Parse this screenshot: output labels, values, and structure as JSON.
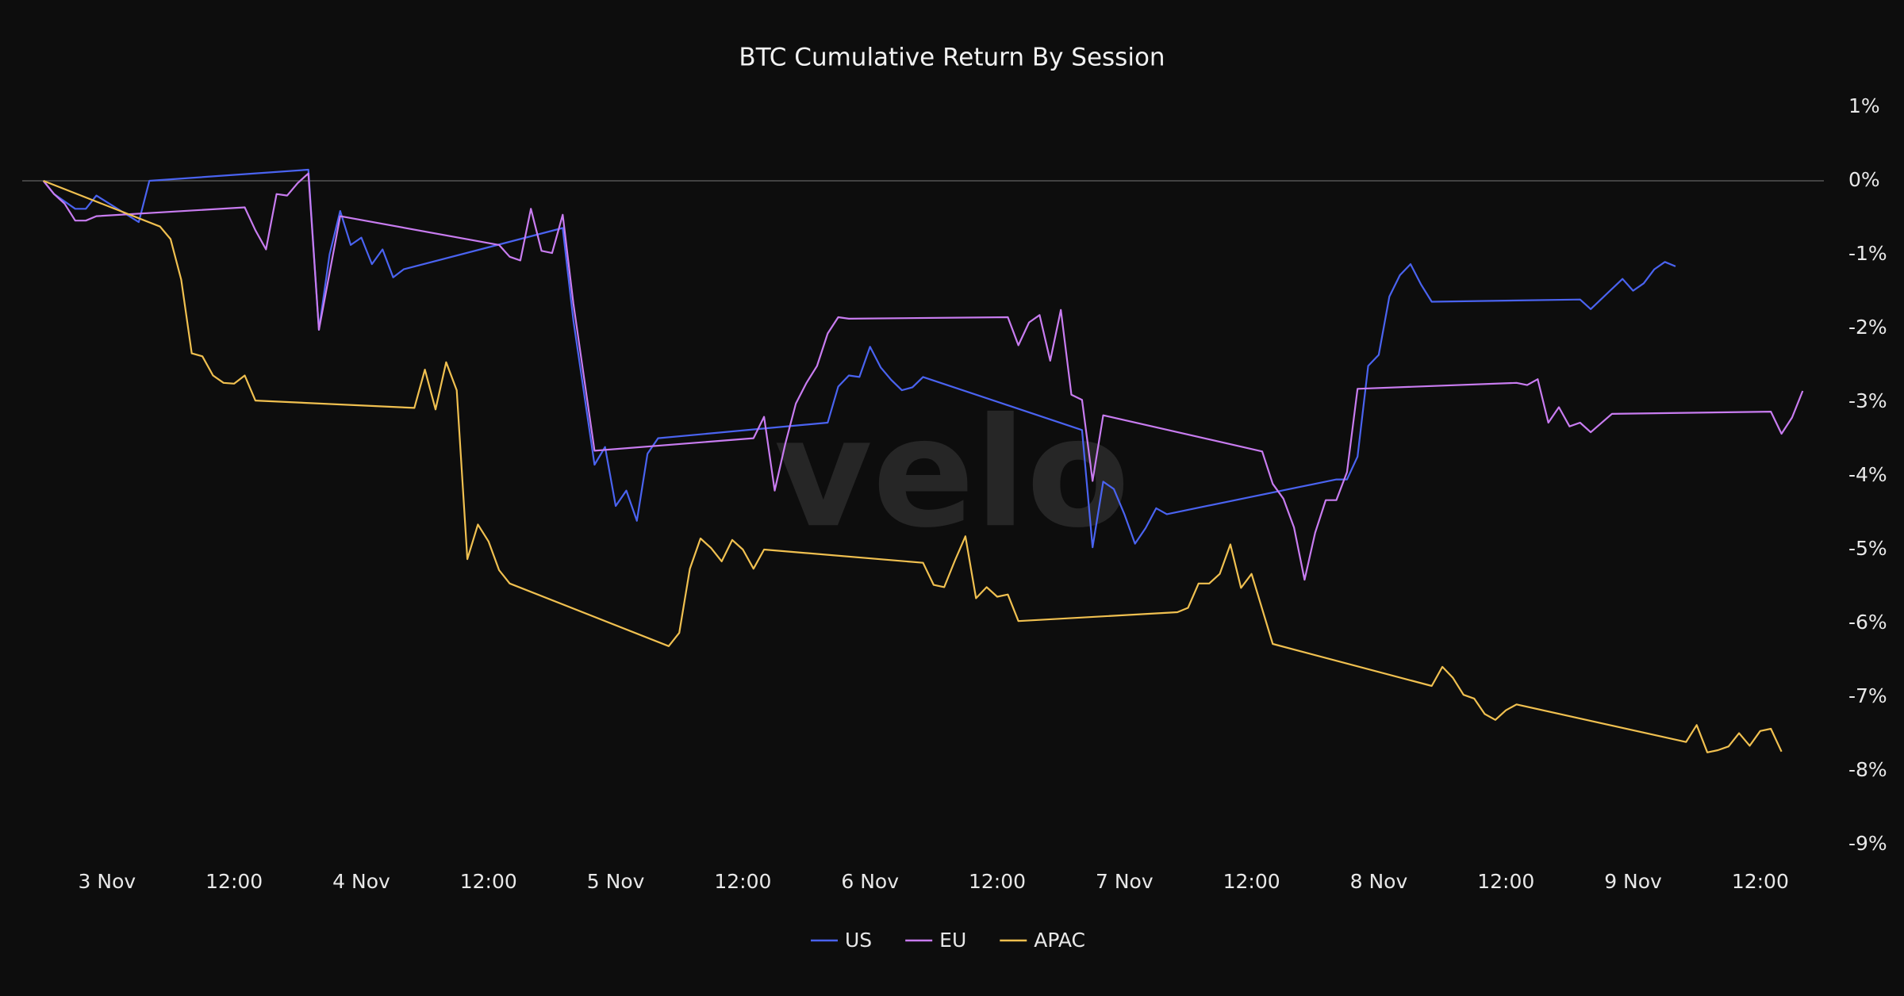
{
  "chart_data": {
    "type": "line",
    "title": "BTC Cumulative Return By Session",
    "watermark": "velo",
    "xlim": [
      "11-02T16:00",
      "11-09T18:00"
    ],
    "xticks": [
      {
        "value": "11-03T00:00",
        "label": "3 Nov"
      },
      {
        "value": "11-03T12:00",
        "label": "12:00"
      },
      {
        "value": "11-04T00:00",
        "label": "4 Nov"
      },
      {
        "value": "11-04T12:00",
        "label": "12:00"
      },
      {
        "value": "11-05T00:00",
        "label": "5 Nov"
      },
      {
        "value": "11-05T12:00",
        "label": "12:00"
      },
      {
        "value": "11-06T00:00",
        "label": "6 Nov"
      },
      {
        "value": "11-06T12:00",
        "label": "12:00"
      },
      {
        "value": "11-07T00:00",
        "label": "7 Nov"
      },
      {
        "value": "11-07T12:00",
        "label": "12:00"
      },
      {
        "value": "11-08T00:00",
        "label": "8 Nov"
      },
      {
        "value": "11-08T12:00",
        "label": "12:00"
      },
      {
        "value": "11-09T00:00",
        "label": "9 Nov"
      },
      {
        "value": "11-09T12:00",
        "label": "12:00"
      }
    ],
    "ylim": [
      -9,
      1
    ],
    "yticks": [
      {
        "value": 1,
        "label": "1%"
      },
      {
        "value": 0,
        "label": "0%"
      },
      {
        "value": -1,
        "label": "-1%"
      },
      {
        "value": -2,
        "label": "-2%"
      },
      {
        "value": -3,
        "label": "-3%"
      },
      {
        "value": -4,
        "label": "-4%"
      },
      {
        "value": -5,
        "label": "-5%"
      },
      {
        "value": -6,
        "label": "-6%"
      },
      {
        "value": -7,
        "label": "-7%"
      },
      {
        "value": -8,
        "label": "-8%"
      },
      {
        "value": -9,
        "label": "-9%"
      }
    ],
    "zeroline": true,
    "legend": "bottom",
    "series": [
      {
        "name": "US",
        "color": "#4a63f0",
        "x": [
          "11-02T18:00",
          "11-02T19:00",
          "11-02T21:00",
          "11-02T22:00",
          "11-02T23:00",
          "11-03T01:00",
          "11-03T03:00",
          "11-03T04:00",
          "11-03T19:00",
          "11-03T20:00",
          "11-03T21:00",
          "11-03T22:00",
          "11-03T23:00",
          "11-04T00:00",
          "11-04T01:00",
          "11-04T02:00",
          "11-04T03:00",
          "11-04T04:00",
          "11-04T19:00",
          "11-04T20:00",
          "11-04T22:00",
          "11-04T23:00",
          "11-05T00:00",
          "11-05T01:00",
          "11-05T02:00",
          "11-05T03:00",
          "11-05T04:00",
          "11-05T20:00",
          "11-05T21:00",
          "11-05T22:00",
          "11-05T23:00",
          "11-06T00:00",
          "11-06T01:00",
          "11-06T02:00",
          "11-06T03:00",
          "11-06T04:00",
          "11-06T05:00",
          "11-06T20:00",
          "11-06T21:00",
          "11-06T22:00",
          "11-06T23:00",
          "11-07T00:00",
          "11-07T01:00",
          "11-07T02:00",
          "11-07T03:00",
          "11-07T04:00",
          "11-07T20:00",
          "11-07T21:00",
          "11-07T22:00",
          "11-07T23:00",
          "11-08T00:00",
          "11-08T01:00",
          "11-08T02:00",
          "11-08T03:00",
          "11-08T04:00",
          "11-08T05:00",
          "11-08T19:00",
          "11-08T20:00",
          "11-08T23:00",
          "11-09T00:00",
          "11-09T01:00",
          "11-09T02:00",
          "11-09T03:00",
          "11-09T04:00"
        ],
        "values": [
          0,
          -0.18,
          -0.38,
          -0.38,
          -0.2,
          -0.38,
          -0.56,
          0,
          0.15,
          -2.02,
          -1.0,
          -0.41,
          -0.87,
          -0.77,
          -1.13,
          -0.93,
          -1.31,
          -1.2,
          -0.64,
          -1.89,
          -3.85,
          -3.61,
          -4.41,
          -4.2,
          -4.61,
          -3.7,
          -3.49,
          -3.28,
          -2.79,
          -2.64,
          -2.66,
          -2.25,
          -2.53,
          -2.7,
          -2.84,
          -2.8,
          -2.66,
          -3.38,
          -4.97,
          -4.08,
          -4.18,
          -4.52,
          -4.92,
          -4.71,
          -4.44,
          -4.52,
          -4.05,
          -4.05,
          -3.74,
          -2.51,
          -2.36,
          -1.57,
          -1.28,
          -1.13,
          -1.41,
          -1.64,
          -1.61,
          -1.74,
          -1.33,
          -1.49,
          -1.39,
          -1.2,
          -1.1,
          -1.16
        ]
      },
      {
        "name": "EU",
        "color": "#c87cf0",
        "x": [
          "11-02T18:00",
          "11-02T19:00",
          "11-02T20:00",
          "11-02T21:00",
          "11-02T22:00",
          "11-02T23:00",
          "11-03T13:00",
          "11-03T14:00",
          "11-03T15:00",
          "11-03T16:00",
          "11-03T17:00",
          "11-03T18:00",
          "11-03T19:00",
          "11-03T20:00",
          "11-03T22:00",
          "11-04T13:00",
          "11-04T14:00",
          "11-04T15:00",
          "11-04T16:00",
          "11-04T17:00",
          "11-04T18:00",
          "11-04T19:00",
          "11-04T20:00",
          "11-04T22:00",
          "11-05T13:00",
          "11-05T14:00",
          "11-05T15:00",
          "11-05T16:00",
          "11-05T17:00",
          "11-05T18:00",
          "11-05T19:00",
          "11-05T20:00",
          "11-05T21:00",
          "11-05T22:00",
          "11-06T13:00",
          "11-06T14:00",
          "11-06T15:00",
          "11-06T16:00",
          "11-06T17:00",
          "11-06T18:00",
          "11-06T19:00",
          "11-06T20:00",
          "11-06T21:00",
          "11-06T22:00",
          "11-07T13:00",
          "11-07T14:00",
          "11-07T15:00",
          "11-07T16:00",
          "11-07T17:00",
          "11-07T18:00",
          "11-07T19:00",
          "11-07T20:00",
          "11-07T21:00",
          "11-07T22:00",
          "11-08T13:00",
          "11-08T14:00",
          "11-08T15:00",
          "11-08T16:00",
          "11-08T17:00",
          "11-08T18:00",
          "11-08T19:00",
          "11-08T20:00",
          "11-08T22:00",
          "11-09T13:00",
          "11-09T14:00",
          "11-09T15:00",
          "11-09T16:00"
        ],
        "values": [
          0,
          -0.18,
          -0.31,
          -0.54,
          -0.54,
          -0.48,
          -0.36,
          -0.67,
          -0.93,
          -0.18,
          -0.2,
          -0.03,
          0.1,
          -2.02,
          -0.48,
          -0.87,
          -1.03,
          -1.08,
          -0.38,
          -0.95,
          -0.98,
          -0.46,
          -1.66,
          -3.66,
          -3.49,
          -3.2,
          -4.2,
          -3.57,
          -3.02,
          -2.74,
          -2.51,
          -2.07,
          -1.85,
          -1.87,
          -1.85,
          -2.23,
          -1.92,
          -1.82,
          -2.44,
          -1.75,
          -2.9,
          -2.97,
          -4.07,
          -3.18,
          -3.67,
          -4.11,
          -4.31,
          -4.7,
          -5.41,
          -4.77,
          -4.33,
          -4.33,
          -3.95,
          -2.82,
          -2.74,
          -2.77,
          -2.69,
          -3.28,
          -3.07,
          -3.33,
          -3.28,
          -3.41,
          -3.16,
          -3.13,
          -3.43,
          -3.21,
          -2.85
        ]
      },
      {
        "name": "APAC",
        "color": "#f0c050",
        "x": [
          "11-02T18:00",
          "11-03T05:00",
          "11-03T06:00",
          "11-03T07:00",
          "11-03T08:00",
          "11-03T09:00",
          "11-03T10:00",
          "11-03T11:00",
          "11-03T12:00",
          "11-03T13:00",
          "11-03T14:00",
          "11-04T05:00",
          "11-04T06:00",
          "11-04T07:00",
          "11-04T08:00",
          "11-04T09:00",
          "11-04T10:00",
          "11-04T11:00",
          "11-04T12:00",
          "11-04T13:00",
          "11-04T14:00",
          "11-05T05:00",
          "11-05T06:00",
          "11-05T07:00",
          "11-05T08:00",
          "11-05T09:00",
          "11-05T10:00",
          "11-05T11:00",
          "11-05T12:00",
          "11-05T13:00",
          "11-05T14:00",
          "11-06T05:00",
          "11-06T06:00",
          "11-06T07:00",
          "11-06T08:00",
          "11-06T09:00",
          "11-06T10:00",
          "11-06T11:00",
          "11-06T12:00",
          "11-06T13:00",
          "11-06T14:00",
          "11-07T05:00",
          "11-07T06:00",
          "11-07T07:00",
          "11-07T08:00",
          "11-07T09:00",
          "11-07T10:00",
          "11-07T11:00",
          "11-07T12:00",
          "11-07T14:00",
          "11-08T05:00",
          "11-08T06:00",
          "11-08T07:00",
          "11-08T08:00",
          "11-08T09:00",
          "11-08T10:00",
          "11-08T11:00",
          "11-08T12:00",
          "11-08T13:00",
          "11-09T05:00",
          "11-09T06:00",
          "11-09T07:00",
          "11-09T08:00",
          "11-09T09:00",
          "11-09T10:00",
          "11-09T11:00",
          "11-09T12:00",
          "11-09T13:00",
          "11-09T14:00"
        ],
        "values": [
          0,
          -0.62,
          -0.79,
          -1.34,
          -2.34,
          -2.38,
          -2.64,
          -2.74,
          -2.75,
          -2.64,
          -2.98,
          -3.08,
          -2.56,
          -3.1,
          -2.46,
          -2.84,
          -5.13,
          -4.66,
          -4.89,
          -5.28,
          -5.46,
          -6.31,
          -6.13,
          -5.26,
          -4.85,
          -4.98,
          -5.16,
          -4.87,
          -5.0,
          -5.26,
          -5.0,
          -5.18,
          -5.48,
          -5.51,
          -5.15,
          -4.82,
          -5.66,
          -5.51,
          -5.64,
          -5.61,
          -5.97,
          -5.85,
          -5.79,
          -5.46,
          -5.46,
          -5.33,
          -4.93,
          -5.52,
          -5.33,
          -6.28,
          -6.85,
          -6.59,
          -6.74,
          -6.97,
          -7.02,
          -7.23,
          -7.31,
          -7.18,
          -7.1,
          -7.61,
          -7.38,
          -7.75,
          -7.72,
          -7.67,
          -7.49,
          -7.66,
          -7.46,
          -7.43,
          -7.74
        ]
      }
    ]
  }
}
